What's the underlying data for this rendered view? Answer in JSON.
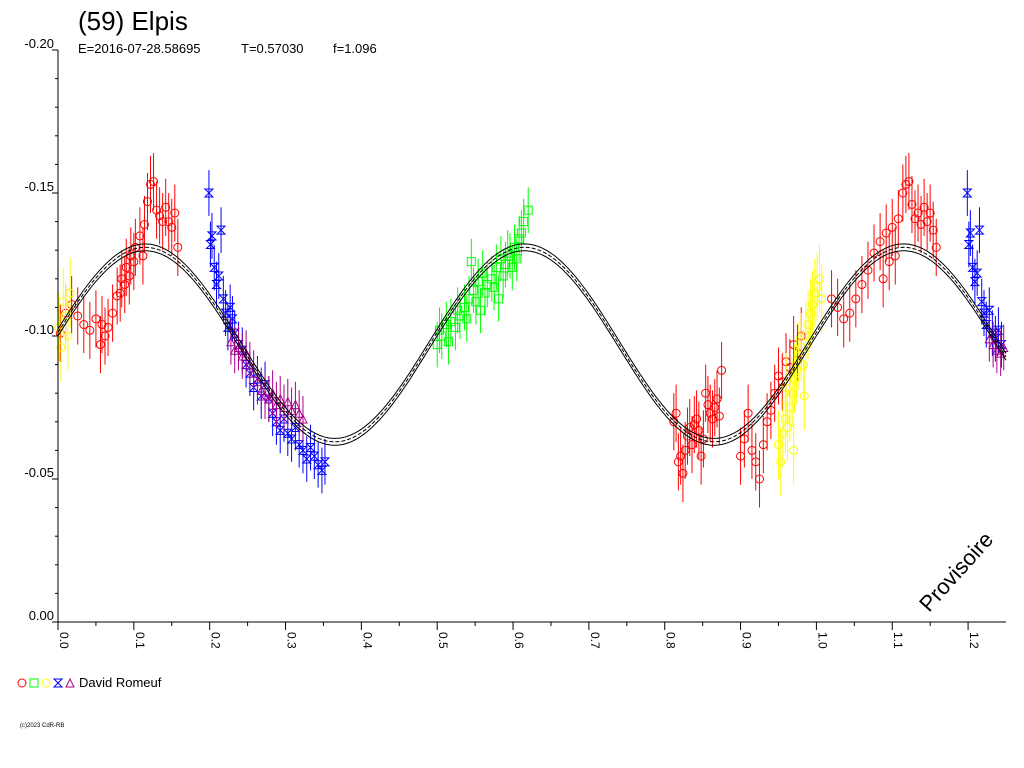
{
  "chart_data": {
    "type": "scatter",
    "title": "(59) Elpis",
    "subtitle": {
      "epoch": "E=2016-07-28.58695",
      "period": "T=0.57030",
      "f": "f=1.096"
    },
    "xlabel": "",
    "ylabel": "",
    "xlim": [
      0.0,
      1.25
    ],
    "ylim": [
      -0.2,
      0.0
    ],
    "y_inverted": true,
    "x_tick_labels": [
      "0.0",
      "0.1",
      "0.2",
      "0.3",
      "0.4",
      "0.5",
      "0.6",
      "0.7",
      "0.8",
      "0.9",
      "1.0",
      "1.1",
      "1.2"
    ],
    "y_tick_labels": [
      "-0.20",
      "-0.15",
      "-0.10",
      "-0.05",
      "0.00"
    ],
    "grid": false,
    "watermark": "Provisoire",
    "legend": {
      "placement": "bottom-left",
      "observer": "David Romeuf",
      "symbols": [
        {
          "shape": "circle",
          "color": "#ff0000"
        },
        {
          "shape": "square",
          "color": "#00ff00"
        },
        {
          "shape": "circle",
          "color": "#ffff00"
        },
        {
          "shape": "hourglass",
          "color": "#0000ff"
        },
        {
          "shape": "triangle",
          "color": "#aa0088"
        }
      ]
    },
    "fit_curve": {
      "mean": -0.097,
      "amplitude": 0.034,
      "phase_max_1": 0.115,
      "phase_max_2": 0.615,
      "band": 0.0012
    },
    "series": [
      {
        "color": "#ff0000",
        "symbol": "circle",
        "error": 0.01,
        "points": [
          [
            0.003,
            -0.101
          ],
          [
            0.01,
            -0.108
          ],
          [
            0.018,
            -0.111
          ],
          [
            0.026,
            -0.107
          ],
          [
            0.034,
            -0.104
          ],
          [
            0.042,
            -0.102
          ],
          [
            0.05,
            -0.106
          ],
          [
            0.058,
            -0.104
          ],
          [
            0.066,
            -0.103
          ],
          [
            0.072,
            -0.108
          ],
          [
            0.078,
            -0.114
          ],
          [
            0.084,
            -0.12
          ],
          [
            0.09,
            -0.124
          ],
          [
            0.096,
            -0.128
          ],
          [
            0.102,
            -0.131
          ],
          [
            0.108,
            -0.135
          ],
          [
            0.114,
            -0.139
          ],
          [
            0.118,
            -0.147
          ],
          [
            0.122,
            -0.153
          ],
          [
            0.126,
            -0.154
          ],
          [
            0.13,
            -0.144
          ],
          [
            0.134,
            -0.142
          ],
          [
            0.138,
            -0.14
          ],
          [
            0.142,
            -0.145
          ],
          [
            0.146,
            -0.14
          ],
          [
            0.15,
            -0.138
          ],
          [
            0.154,
            -0.143
          ],
          [
            0.158,
            -0.131
          ],
          [
            0.112,
            -0.128
          ],
          [
            0.1,
            -0.126
          ],
          [
            0.094,
            -0.121
          ],
          [
            0.088,
            -0.118
          ],
          [
            0.082,
            -0.115
          ],
          [
            0.062,
            -0.1
          ],
          [
            0.056,
            -0.097
          ],
          [
            0.812,
            -0.07
          ],
          [
            0.815,
            -0.073
          ],
          [
            0.818,
            -0.056
          ],
          [
            0.821,
            -0.058
          ],
          [
            0.824,
            -0.052
          ],
          [
            0.827,
            -0.06
          ],
          [
            0.83,
            -0.065
          ],
          [
            0.833,
            -0.068
          ],
          [
            0.836,
            -0.062
          ],
          [
            0.839,
            -0.069
          ],
          [
            0.842,
            -0.071
          ],
          [
            0.845,
            -0.067
          ],
          [
            0.848,
            -0.058
          ],
          [
            0.851,
            -0.064
          ],
          [
            0.854,
            -0.08
          ],
          [
            0.857,
            -0.076
          ],
          [
            0.86,
            -0.073
          ],
          [
            0.863,
            -0.071
          ],
          [
            0.866,
            -0.075
          ],
          [
            0.869,
            -0.078
          ],
          [
            0.872,
            -0.072
          ],
          [
            0.875,
            -0.088
          ],
          [
            0.9,
            -0.058
          ],
          [
            0.905,
            -0.064
          ],
          [
            0.91,
            -0.073
          ],
          [
            0.915,
            -0.06
          ],
          [
            0.92,
            -0.056
          ],
          [
            0.925,
            -0.05
          ],
          [
            0.93,
            -0.062
          ],
          [
            0.935,
            -0.07
          ],
          [
            0.94,
            -0.074
          ],
          [
            0.945,
            -0.08
          ],
          [
            0.95,
            -0.086
          ],
          [
            0.955,
            -0.084
          ],
          [
            0.96,
            -0.091
          ],
          [
            0.965,
            -0.089
          ],
          [
            0.97,
            -0.097
          ],
          [
            0.975,
            -0.094
          ],
          [
            0.98,
            -0.1
          ],
          [
            1.02,
            -0.113
          ],
          [
            1.028,
            -0.11
          ],
          [
            1.036,
            -0.106
          ],
          [
            1.044,
            -0.108
          ],
          [
            1.052,
            -0.113
          ],
          [
            1.06,
            -0.118
          ],
          [
            1.068,
            -0.123
          ],
          [
            1.076,
            -0.129
          ],
          [
            1.084,
            -0.133
          ],
          [
            1.092,
            -0.136
          ],
          [
            1.1,
            -0.138
          ],
          [
            1.108,
            -0.141
          ],
          [
            1.114,
            -0.15
          ],
          [
            1.118,
            -0.153
          ],
          [
            1.122,
            -0.154
          ],
          [
            1.126,
            -0.146
          ],
          [
            1.13,
            -0.141
          ],
          [
            1.134,
            -0.143
          ],
          [
            1.138,
            -0.139
          ],
          [
            1.142,
            -0.145
          ],
          [
            1.146,
            -0.14
          ],
          [
            1.15,
            -0.143
          ],
          [
            1.154,
            -0.137
          ],
          [
            1.158,
            -0.131
          ],
          [
            1.104,
            -0.128
          ],
          [
            1.096,
            -0.126
          ],
          [
            1.088,
            -0.12
          ]
        ]
      },
      {
        "color": "#00ff00",
        "symbol": "square",
        "error": 0.008,
        "points": [
          [
            0.5,
            -0.097
          ],
          [
            0.506,
            -0.1
          ],
          [
            0.512,
            -0.104
          ],
          [
            0.518,
            -0.105
          ],
          [
            0.524,
            -0.103
          ],
          [
            0.53,
            -0.107
          ],
          [
            0.536,
            -0.11
          ],
          [
            0.542,
            -0.113
          ],
          [
            0.548,
            -0.116
          ],
          [
            0.554,
            -0.119
          ],
          [
            0.56,
            -0.122
          ],
          [
            0.566,
            -0.118
          ],
          [
            0.572,
            -0.12
          ],
          [
            0.578,
            -0.124
          ],
          [
            0.584,
            -0.127
          ],
          [
            0.59,
            -0.125
          ],
          [
            0.596,
            -0.128
          ],
          [
            0.602,
            -0.131
          ],
          [
            0.608,
            -0.134
          ],
          [
            0.614,
            -0.14
          ],
          [
            0.62,
            -0.144
          ],
          [
            0.503,
            -0.102
          ],
          [
            0.515,
            -0.098
          ],
          [
            0.527,
            -0.109
          ],
          [
            0.539,
            -0.106
          ],
          [
            0.551,
            -0.112
          ],
          [
            0.563,
            -0.115
          ],
          [
            0.575,
            -0.117
          ],
          [
            0.587,
            -0.121
          ],
          [
            0.599,
            -0.124
          ],
          [
            0.611,
            -0.136
          ],
          [
            0.545,
            -0.126
          ],
          [
            0.557,
            -0.109
          ],
          [
            0.581,
            -0.113
          ],
          [
            0.593,
            -0.129
          ],
          [
            0.605,
            -0.127
          ]
        ]
      },
      {
        "color": "#ffff00",
        "symbol": "circle",
        "error": 0.012,
        "points": [
          [
            0.001,
            -0.103
          ],
          [
            0.004,
            -0.096
          ],
          [
            0.007,
            -0.112
          ],
          [
            0.01,
            -0.107
          ],
          [
            0.013,
            -0.1
          ],
          [
            0.016,
            -0.115
          ],
          [
            0.95,
            -0.062
          ],
          [
            0.953,
            -0.056
          ],
          [
            0.956,
            -0.066
          ],
          [
            0.959,
            -0.071
          ],
          [
            0.962,
            -0.068
          ],
          [
            0.965,
            -0.075
          ],
          [
            0.968,
            -0.08
          ],
          [
            0.971,
            -0.085
          ],
          [
            0.974,
            -0.088
          ],
          [
            0.977,
            -0.093
          ],
          [
            0.98,
            -0.096
          ],
          [
            0.983,
            -0.09
          ],
          [
            0.986,
            -0.1
          ],
          [
            0.989,
            -0.104
          ],
          [
            0.992,
            -0.108
          ],
          [
            0.995,
            -0.111
          ],
          [
            0.998,
            -0.115
          ],
          [
            1.001,
            -0.117
          ],
          [
            1.004,
            -0.12
          ],
          [
            1.007,
            -0.113
          ],
          [
            0.96,
            -0.082
          ],
          [
            0.97,
            -0.06
          ],
          [
            0.984,
            -0.079
          ]
        ]
      },
      {
        "color": "#0000ff",
        "symbol": "hourglass",
        "error": 0.008,
        "points": [
          [
            0.199,
            -0.15
          ],
          [
            0.201,
            -0.132
          ],
          [
            0.203,
            -0.135
          ],
          [
            0.206,
            -0.124
          ],
          [
            0.209,
            -0.118
          ],
          [
            0.212,
            -0.121
          ],
          [
            0.215,
            -0.137
          ],
          [
            0.218,
            -0.113
          ],
          [
            0.221,
            -0.108
          ],
          [
            0.224,
            -0.103
          ],
          [
            0.227,
            -0.11
          ],
          [
            0.23,
            -0.106
          ],
          [
            0.233,
            -0.101
          ],
          [
            0.238,
            -0.097
          ],
          [
            0.243,
            -0.095
          ],
          [
            0.248,
            -0.09
          ],
          [
            0.253,
            -0.087
          ],
          [
            0.258,
            -0.082
          ],
          [
            0.263,
            -0.085
          ],
          [
            0.268,
            -0.079
          ],
          [
            0.273,
            -0.083
          ],
          [
            0.278,
            -0.078
          ],
          [
            0.283,
            -0.073
          ],
          [
            0.288,
            -0.07
          ],
          [
            0.293,
            -0.067
          ],
          [
            0.298,
            -0.071
          ],
          [
            0.303,
            -0.066
          ],
          [
            0.308,
            -0.064
          ],
          [
            0.313,
            -0.068
          ],
          [
            0.318,
            -0.062
          ],
          [
            0.323,
            -0.06
          ],
          [
            0.328,
            -0.057
          ],
          [
            0.333,
            -0.061
          ],
          [
            0.338,
            -0.058
          ],
          [
            0.343,
            -0.055
          ],
          [
            0.348,
            -0.053
          ],
          [
            0.352,
            -0.056
          ],
          [
            1.199,
            -0.15
          ],
          [
            1.201,
            -0.132
          ],
          [
            1.203,
            -0.136
          ],
          [
            1.206,
            -0.124
          ],
          [
            1.209,
            -0.119
          ],
          [
            1.212,
            -0.122
          ],
          [
            1.215,
            -0.137
          ],
          [
            1.218,
            -0.112
          ],
          [
            1.221,
            -0.108
          ],
          [
            1.224,
            -0.104
          ],
          [
            1.228,
            -0.109
          ],
          [
            1.232,
            -0.101
          ],
          [
            1.236,
            -0.099
          ],
          [
            1.24,
            -0.102
          ],
          [
            1.244,
            -0.097
          ]
        ]
      },
      {
        "color": "#aa0088",
        "symbol": "triangle",
        "error": 0.008,
        "points": [
          [
            0.228,
            -0.098
          ],
          [
            0.233,
            -0.095
          ],
          [
            0.238,
            -0.096
          ],
          [
            0.243,
            -0.093
          ],
          [
            0.248,
            -0.094
          ],
          [
            0.253,
            -0.09
          ],
          [
            0.258,
            -0.087
          ],
          [
            0.263,
            -0.084
          ],
          [
            0.268,
            -0.081
          ],
          [
            0.273,
            -0.079
          ],
          [
            0.278,
            -0.078
          ],
          [
            0.283,
            -0.08
          ],
          [
            0.288,
            -0.076
          ],
          [
            0.293,
            -0.078
          ],
          [
            0.298,
            -0.075
          ],
          [
            0.303,
            -0.077
          ],
          [
            0.308,
            -0.074
          ],
          [
            0.313,
            -0.076
          ],
          [
            0.318,
            -0.073
          ],
          [
            0.323,
            -0.071
          ],
          [
            1.228,
            -0.099
          ],
          [
            1.233,
            -0.097
          ],
          [
            1.238,
            -0.095
          ],
          [
            1.243,
            -0.094
          ],
          [
            1.247,
            -0.096
          ]
        ]
      }
    ]
  },
  "legend_label": "David Romeuf",
  "copyright": "(c)2023 CdR-RB"
}
